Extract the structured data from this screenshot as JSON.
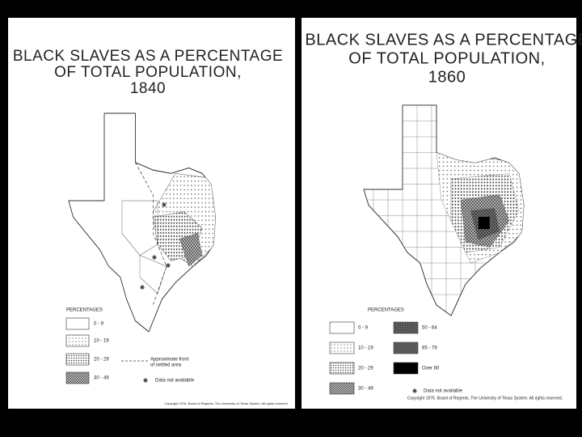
{
  "panels": [
    {
      "title_lines": [
        "BLACK SLAVES AS A PERCENTAGE",
        "OF TOTAL POPULATION,",
        "1840"
      ],
      "legend_heading": "PERCENTAGES",
      "legend": [
        "0 - 9",
        "10 - 19",
        "20 - 29",
        "30 - 49"
      ],
      "front_note": [
        "Approximate front",
        "of settled area"
      ],
      "na_note": "Data not available",
      "copyright": "Copyright 1976, Board of Regents, The University of Texas System. All rights reserved."
    },
    {
      "title_lines": [
        "BLACK SLAVES AS A PERCENTAGE",
        "OF TOTAL POPULATION,",
        "1860"
      ],
      "legend_heading": "PERCENTAGES",
      "legend": [
        "0 - 9",
        "10 - 19",
        "20 - 29",
        "30 - 49",
        "50 - 64",
        "65 - 79",
        "Over 80"
      ],
      "na_note": "Data not available",
      "copyright": "Copyright 1976, Board of Regents, The University of Texas System. All rights reserved."
    }
  ]
}
